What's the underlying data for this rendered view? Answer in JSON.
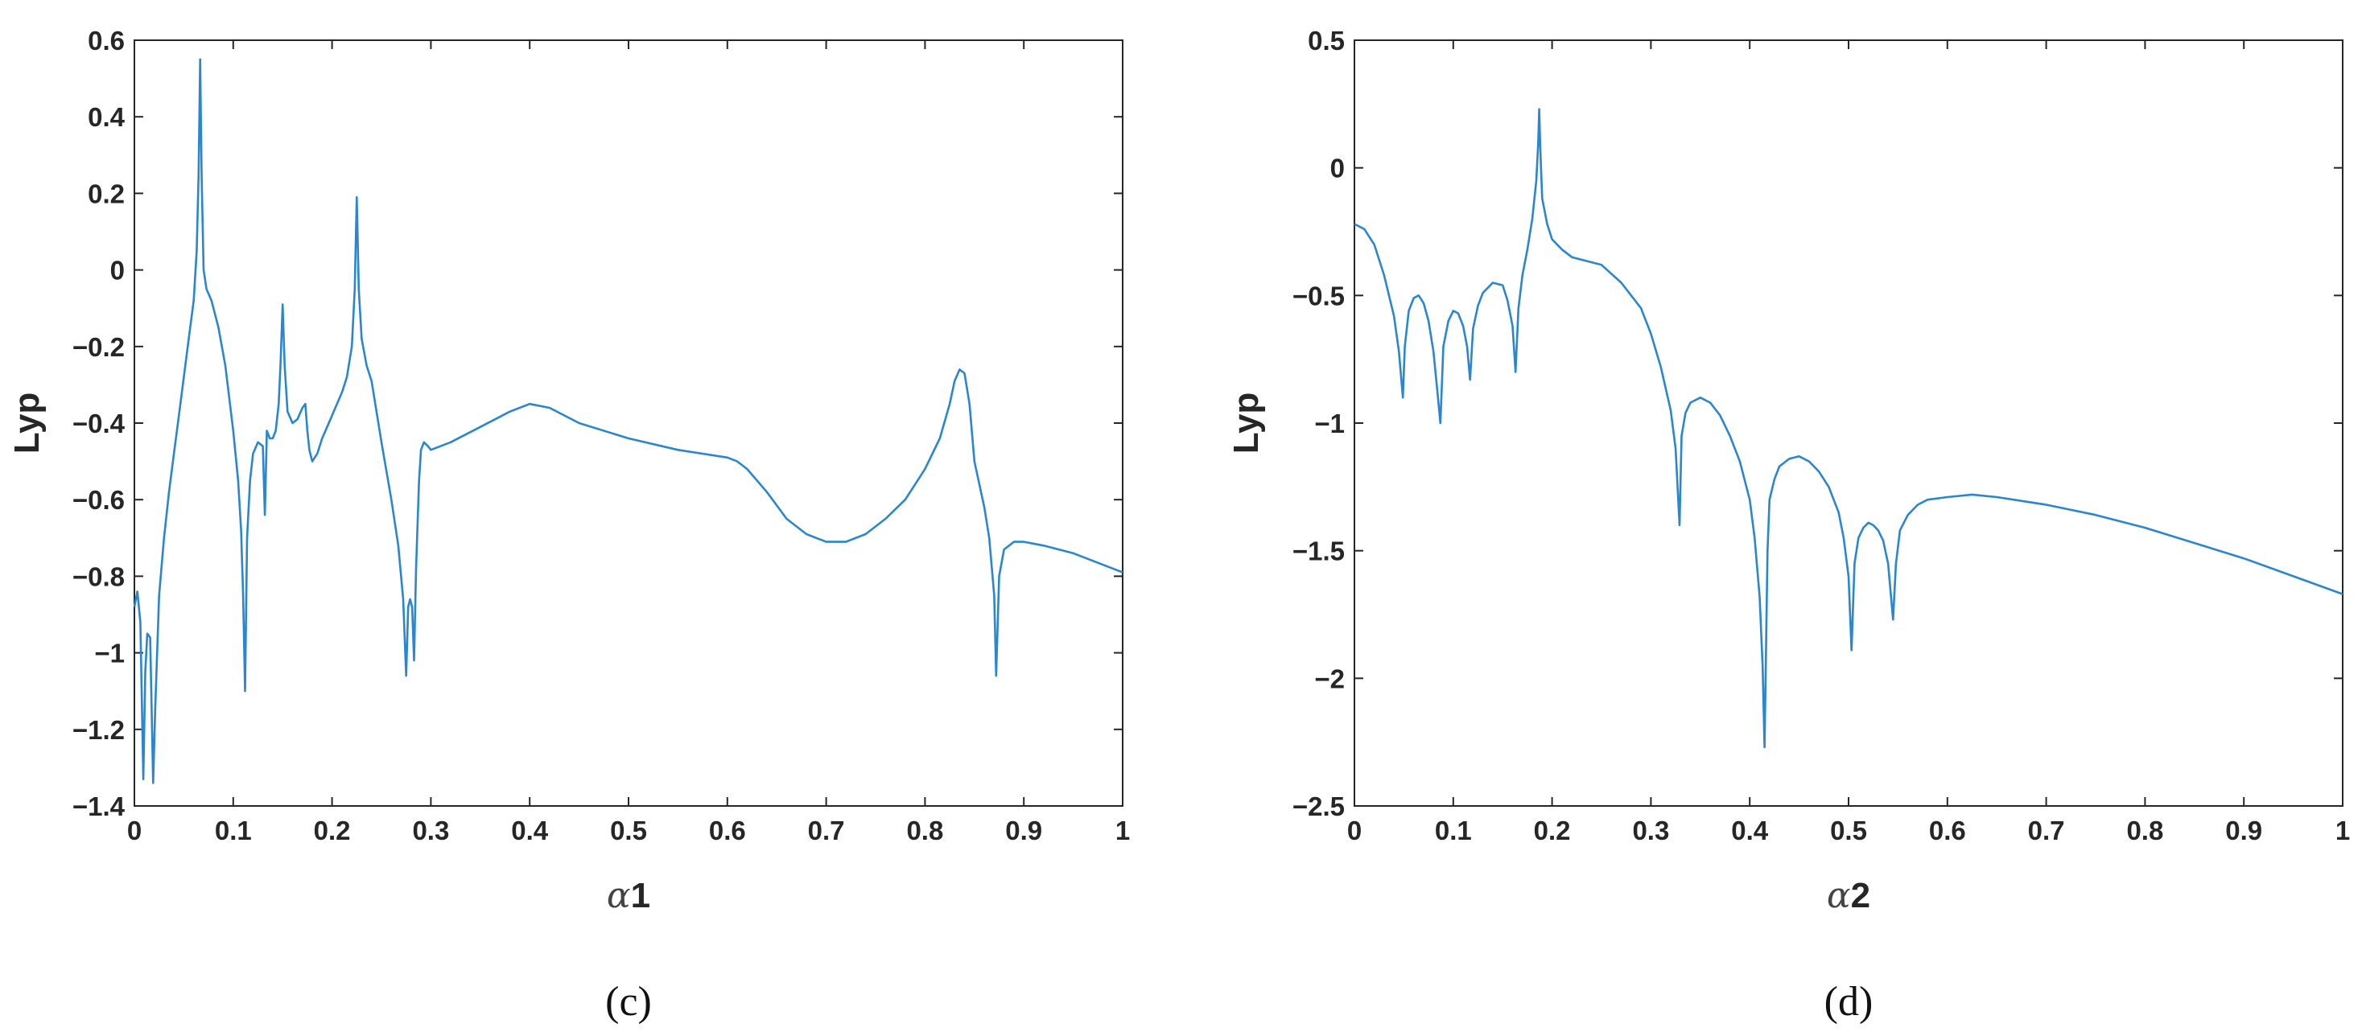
{
  "colors": {
    "line": "#2a86d1",
    "axis": "#262626",
    "background": "#ffffff"
  },
  "chart_data": [
    {
      "type": "line",
      "panel_label": "(c)",
      "xlabel_symbol": "α",
      "xlabel_suffix": "1",
      "ylabel": "Lyp",
      "xlim": [
        0,
        1
      ],
      "ylim": [
        -1.4,
        0.6
      ],
      "xticks": [
        0,
        0.1,
        0.2,
        0.3,
        0.4,
        0.5,
        0.6,
        0.7,
        0.8,
        0.9,
        1
      ],
      "xtick_labels": [
        "0",
        "0.1",
        "0.2",
        "0.3",
        "0.4",
        "0.5",
        "0.6",
        "0.7",
        "0.8",
        "0.9",
        "1"
      ],
      "yticks": [
        0.6,
        0.4,
        0.2,
        0,
        -0.2,
        -0.4,
        -0.6,
        -0.8,
        -1,
        -1.2,
        -1.4
      ],
      "ytick_labels": [
        "0.6",
        "0.4",
        "0.2",
        "0",
        "-0.2",
        "-0.4",
        "-0.6",
        "-0.8",
        "-1",
        "-1.2",
        "-1.4"
      ],
      "grid": false,
      "series": [
        {
          "x": [
            0,
            0.003,
            0.006,
            0.009,
            0.011,
            0.013,
            0.016,
            0.019,
            0.021,
            0.025,
            0.03,
            0.035,
            0.04,
            0.045,
            0.05,
            0.055,
            0.06,
            0.063,
            0.065,
            0.0665,
            0.068,
            0.07,
            0.073,
            0.078,
            0.085,
            0.092,
            0.1,
            0.105,
            0.108,
            0.11,
            0.112,
            0.114,
            0.117,
            0.12,
            0.125,
            0.13,
            0.132,
            0.134,
            0.137,
            0.14,
            0.143,
            0.146,
            0.148,
            0.15,
            0.152,
            0.155,
            0.16,
            0.165,
            0.17,
            0.173,
            0.175,
            0.177,
            0.18,
            0.185,
            0.19,
            0.195,
            0.2,
            0.205,
            0.21,
            0.215,
            0.22,
            0.223,
            0.225,
            0.227,
            0.23,
            0.235,
            0.24,
            0.25,
            0.26,
            0.267,
            0.272,
            0.275,
            0.277,
            0.279,
            0.281,
            0.283,
            0.285,
            0.288,
            0.29,
            0.293,
            0.297,
            0.3,
            0.32,
            0.35,
            0.38,
            0.4,
            0.42,
            0.45,
            0.5,
            0.55,
            0.6,
            0.61,
            0.62,
            0.64,
            0.66,
            0.68,
            0.7,
            0.72,
            0.74,
            0.76,
            0.78,
            0.8,
            0.815,
            0.825,
            0.83,
            0.835,
            0.84,
            0.845,
            0.85,
            0.86,
            0.865,
            0.87,
            0.872,
            0.875,
            0.88,
            0.89,
            0.9,
            0.92,
            0.95,
            1
          ],
          "y": [
            -0.88,
            -0.84,
            -0.92,
            -1.33,
            -1.05,
            -0.95,
            -0.96,
            -1.34,
            -1.15,
            -0.85,
            -0.7,
            -0.58,
            -0.48,
            -0.38,
            -0.28,
            -0.18,
            -0.08,
            0.05,
            0.25,
            0.55,
            0.25,
            0.0,
            -0.05,
            -0.08,
            -0.15,
            -0.25,
            -0.42,
            -0.55,
            -0.68,
            -0.85,
            -1.1,
            -0.7,
            -0.55,
            -0.48,
            -0.45,
            -0.46,
            -0.64,
            -0.42,
            -0.44,
            -0.44,
            -0.42,
            -0.35,
            -0.24,
            -0.09,
            -0.25,
            -0.37,
            -0.4,
            -0.39,
            -0.36,
            -0.35,
            -0.42,
            -0.47,
            -0.5,
            -0.48,
            -0.44,
            -0.41,
            -0.38,
            -0.35,
            -0.32,
            -0.28,
            -0.2,
            -0.05,
            0.19,
            -0.05,
            -0.18,
            -0.25,
            -0.29,
            -0.45,
            -0.6,
            -0.72,
            -0.86,
            -1.06,
            -0.88,
            -0.86,
            -0.88,
            -1.02,
            -0.78,
            -0.55,
            -0.47,
            -0.45,
            -0.46,
            -0.47,
            -0.45,
            -0.41,
            -0.37,
            -0.35,
            -0.36,
            -0.4,
            -0.44,
            -0.47,
            -0.49,
            -0.5,
            -0.52,
            -0.58,
            -0.65,
            -0.69,
            -0.71,
            -0.71,
            -0.69,
            -0.65,
            -0.6,
            -0.52,
            -0.44,
            -0.35,
            -0.29,
            -0.26,
            -0.27,
            -0.35,
            -0.5,
            -0.62,
            -0.7,
            -0.85,
            -1.06,
            -0.8,
            -0.73,
            -0.71,
            -0.71,
            -0.72,
            -0.74,
            -0.79
          ]
        }
      ]
    },
    {
      "type": "line",
      "panel_label": "(d)",
      "xlabel_symbol": "α",
      "xlabel_suffix": "2",
      "ylabel": "Lyp",
      "xlim": [
        0,
        1
      ],
      "ylim": [
        -2.5,
        0.5
      ],
      "xticks": [
        0,
        0.1,
        0.2,
        0.3,
        0.4,
        0.5,
        0.6,
        0.7,
        0.8,
        0.9,
        1
      ],
      "xtick_labels": [
        "0",
        "0.1",
        "0.2",
        "0.3",
        "0.4",
        "0.5",
        "0.6",
        "0.7",
        "0.8",
        "0.9",
        "1"
      ],
      "yticks": [
        0.5,
        0,
        -0.5,
        -1,
        -1.5,
        -2,
        -2.5
      ],
      "ytick_labels": [
        "0.5",
        "0",
        "-0.5",
        "-1",
        "-1.5",
        "-2",
        "-2.5"
      ],
      "grid": false,
      "series": [
        {
          "x": [
            0,
            0.01,
            0.02,
            0.03,
            0.04,
            0.045,
            0.049,
            0.051,
            0.055,
            0.06,
            0.065,
            0.07,
            0.075,
            0.08,
            0.084,
            0.087,
            0.09,
            0.095,
            0.1,
            0.105,
            0.11,
            0.114,
            0.117,
            0.12,
            0.125,
            0.13,
            0.14,
            0.15,
            0.155,
            0.16,
            0.163,
            0.166,
            0.17,
            0.175,
            0.18,
            0.184,
            0.186,
            0.187,
            0.188,
            0.19,
            0.195,
            0.2,
            0.21,
            0.22,
            0.25,
            0.27,
            0.29,
            0.3,
            0.31,
            0.32,
            0.325,
            0.329,
            0.331,
            0.335,
            0.34,
            0.35,
            0.36,
            0.37,
            0.38,
            0.39,
            0.4,
            0.405,
            0.41,
            0.413,
            0.415,
            0.418,
            0.42,
            0.425,
            0.43,
            0.44,
            0.45,
            0.46,
            0.47,
            0.48,
            0.49,
            0.495,
            0.5,
            0.503,
            0.506,
            0.51,
            0.515,
            0.52,
            0.525,
            0.53,
            0.535,
            0.54,
            0.545,
            0.548,
            0.552,
            0.56,
            0.57,
            0.58,
            0.6,
            0.625,
            0.65,
            0.7,
            0.75,
            0.8,
            0.85,
            0.9,
            0.95,
            1
          ],
          "y": [
            -0.22,
            -0.24,
            -0.3,
            -0.42,
            -0.58,
            -0.72,
            -0.9,
            -0.7,
            -0.56,
            -0.51,
            -0.5,
            -0.53,
            -0.6,
            -0.72,
            -0.88,
            -1.0,
            -0.7,
            -0.6,
            -0.56,
            -0.57,
            -0.62,
            -0.7,
            -0.83,
            -0.63,
            -0.54,
            -0.49,
            -0.45,
            -0.46,
            -0.52,
            -0.62,
            -0.8,
            -0.55,
            -0.42,
            -0.32,
            -0.2,
            -0.05,
            0.1,
            0.23,
            0.08,
            -0.12,
            -0.22,
            -0.28,
            -0.32,
            -0.35,
            -0.38,
            -0.45,
            -0.55,
            -0.65,
            -0.78,
            -0.95,
            -1.1,
            -1.4,
            -1.05,
            -0.96,
            -0.92,
            -0.9,
            -0.92,
            -0.97,
            -1.05,
            -1.15,
            -1.3,
            -1.45,
            -1.68,
            -1.95,
            -2.27,
            -1.5,
            -1.3,
            -1.22,
            -1.17,
            -1.14,
            -1.13,
            -1.15,
            -1.19,
            -1.25,
            -1.35,
            -1.45,
            -1.6,
            -1.89,
            -1.55,
            -1.45,
            -1.41,
            -1.39,
            -1.4,
            -1.42,
            -1.46,
            -1.55,
            -1.77,
            -1.55,
            -1.42,
            -1.36,
            -1.32,
            -1.3,
            -1.29,
            -1.28,
            -1.29,
            -1.32,
            -1.36,
            -1.41,
            -1.47,
            -1.53,
            -1.6,
            -1.67
          ]
        }
      ]
    }
  ]
}
